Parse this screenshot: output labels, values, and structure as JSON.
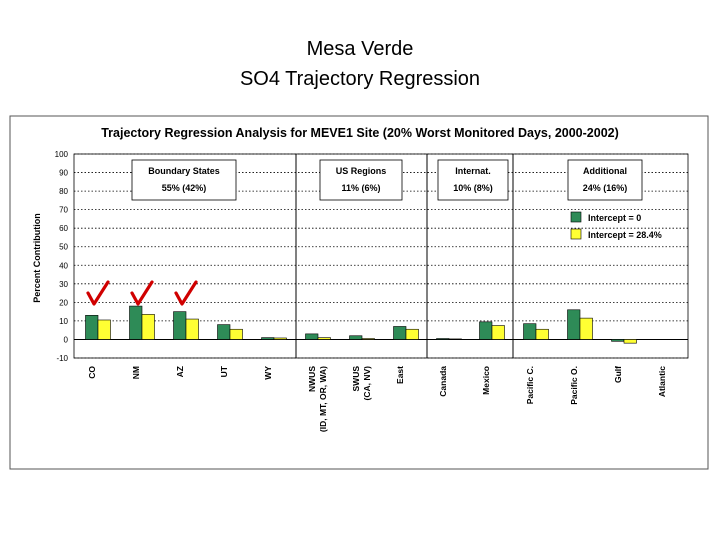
{
  "slide": {
    "title_line1": "Mesa Verde",
    "title_line2": "SO4 Trajectory Regression"
  },
  "colors": {
    "series_intercept_0": "#2e8b57",
    "series_intercept_28": "#ffff33",
    "check": "#d00000",
    "grid": "#000000"
  },
  "chart_data": {
    "type": "bar",
    "title": "Trajectory Regression Analysis for MEVE1 Site (20% Worst Monitored Days, 2000-2002)",
    "xlabel": "",
    "ylabel": "Percent Contribution",
    "ylim": [
      -10,
      100
    ],
    "yticks": [
      -10,
      0,
      10,
      20,
      30,
      40,
      50,
      60,
      70,
      80,
      90,
      100
    ],
    "grid": true,
    "legend_position": "top-right",
    "categories": [
      [
        "CO"
      ],
      [
        "NM"
      ],
      [
        "AZ"
      ],
      [
        "UT"
      ],
      [
        "WY"
      ],
      [
        "NWUS",
        "(ID, MT, OR, WA)"
      ],
      [
        "SWUS",
        "(CA, NV)"
      ],
      [
        "East"
      ],
      [
        "Canada"
      ],
      [
        "Mexico"
      ],
      [
        "Pacific C."
      ],
      [
        "Pacific O."
      ],
      [
        "Gulf"
      ],
      [
        "Atlantic"
      ]
    ],
    "series": [
      {
        "name": "Intercept = 0",
        "values": [
          13,
          18,
          15,
          8,
          1,
          3,
          2,
          7,
          0.5,
          9.5,
          8.5,
          16,
          -1,
          0
        ]
      },
      {
        "name": "Intercept = 28.4%",
        "values": [
          10.5,
          13.5,
          11,
          5.5,
          0.8,
          1,
          0.5,
          5.5,
          0.3,
          7.5,
          5.5,
          11.5,
          -2,
          0
        ]
      }
    ],
    "checked_categories": [
      "CO",
      "NM",
      "AZ"
    ],
    "groups": [
      {
        "label": "Boundary States",
        "value": "55% (42%)"
      },
      {
        "label": "US Regions",
        "value": "11% (6%)"
      },
      {
        "label": "Internat.",
        "value": "10% (8%)"
      },
      {
        "label": "Additional",
        "value": "24% (16%)"
      }
    ]
  }
}
